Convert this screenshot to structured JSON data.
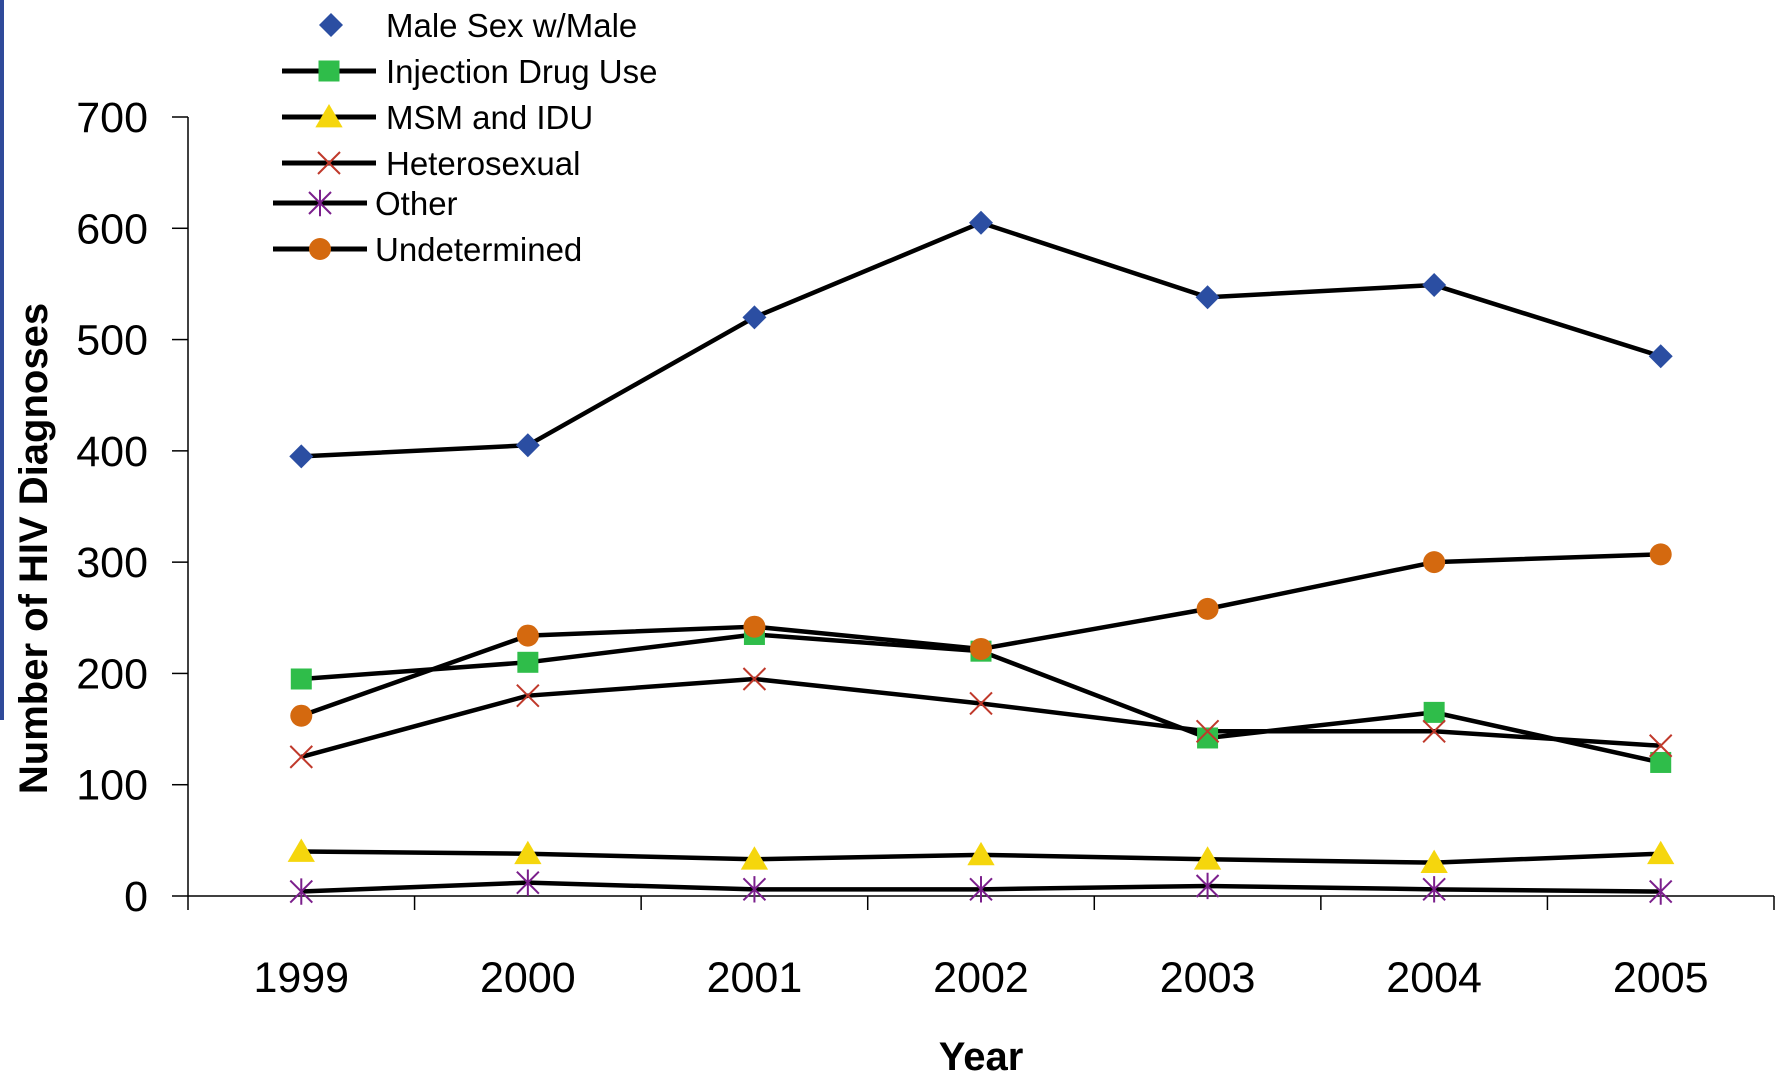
{
  "chart_data": {
    "type": "line",
    "title": "",
    "xlabel": "Year",
    "ylabel": "Number of HIV Diagnoses",
    "categories": [
      "1999",
      "2000",
      "2001",
      "2002",
      "2003",
      "2004",
      "2005"
    ],
    "ylim": [
      0,
      700
    ],
    "yticks": [
      "0",
      "100",
      "200",
      "300",
      "400",
      "500",
      "600",
      "700"
    ],
    "grid": false,
    "legend_position": "top-left",
    "series": [
      {
        "name": "Male Sex w/Male",
        "values": [
          395,
          405,
          520,
          605,
          538,
          549,
          485
        ],
        "marker": "diamond",
        "color": "#2b4ea2"
      },
      {
        "name": "Injection Drug Use",
        "values": [
          195,
          210,
          235,
          220,
          142,
          165,
          120
        ],
        "marker": "square",
        "color": "#2fbd4a"
      },
      {
        "name": "MSM and IDU",
        "values": [
          40,
          38,
          33,
          37,
          33,
          30,
          38
        ],
        "marker": "triangle",
        "color": "#f5d60d"
      },
      {
        "name": "Heterosexual",
        "values": [
          125,
          180,
          195,
          173,
          148,
          148,
          135
        ],
        "marker": "x",
        "color": "#c0392b"
      },
      {
        "name": "Other",
        "values": [
          4,
          12,
          6,
          6,
          9,
          6,
          4
        ],
        "marker": "star",
        "color": "#7b1f8c"
      },
      {
        "name": "Undetermined",
        "values": [
          162,
          234,
          242,
          222,
          258,
          300,
          307
        ],
        "marker": "circle",
        "color": "#d4690f"
      }
    ]
  }
}
